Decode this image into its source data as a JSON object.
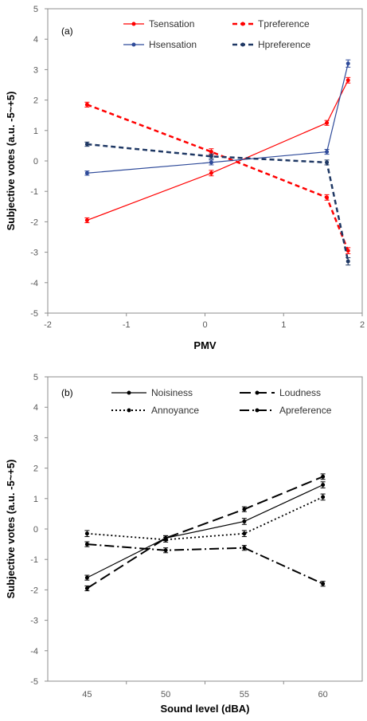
{
  "chart_data": [
    {
      "type": "line",
      "panel_label": "(a)",
      "xlabel": "PMV",
      "ylabel": "Subjective votes (a.u. -5~+5)",
      "xlim": [
        -2,
        2
      ],
      "ylim": [
        -5,
        5
      ],
      "xticks": [
        "-2",
        "-1",
        "0",
        "1",
        "2"
      ],
      "yticks": [
        "5",
        "4",
        "3",
        "2",
        "1",
        "0",
        "-1",
        "-2",
        "-3",
        "-4",
        "-5"
      ],
      "legend_placement": "top",
      "series": [
        {
          "name": "Tsensation",
          "color": "#ff0000",
          "dash": "solid",
          "x": [
            -1.5,
            0.08,
            1.55,
            1.82
          ],
          "y": [
            -1.95,
            -0.4,
            1.25,
            2.65
          ],
          "err": [
            0.08,
            0.09,
            0.08,
            0.09
          ]
        },
        {
          "name": "Tpreference",
          "color": "#ff0000",
          "dash": "dashed",
          "x": [
            -1.5,
            0.08,
            1.55,
            1.82
          ],
          "y": [
            1.85,
            0.3,
            -1.2,
            -2.95
          ],
          "err": [
            0.08,
            0.1,
            0.09,
            0.1
          ]
        },
        {
          "name": "Hsensation",
          "color": "#2f4b9a",
          "dash": "solid",
          "x": [
            -1.5,
            0.08,
            1.55,
            1.82
          ],
          "y": [
            -0.4,
            -0.05,
            0.3,
            3.2
          ],
          "err": [
            0.07,
            0.08,
            0.08,
            0.12
          ]
        },
        {
          "name": "Hpreference",
          "color": "#1f3864",
          "dash": "dashed",
          "x": [
            -1.5,
            0.08,
            1.55,
            1.82
          ],
          "y": [
            0.55,
            0.15,
            -0.05,
            -3.3
          ],
          "err": [
            0.07,
            0.08,
            0.08,
            0.12
          ]
        }
      ]
    },
    {
      "type": "line",
      "panel_label": "(b)",
      "xlabel": "Sound level (dBA)",
      "ylabel": "Subjective votes (a.u. -5~+5)",
      "categories": [
        "45",
        "50",
        "55",
        "60"
      ],
      "ylim": [
        -5,
        5
      ],
      "yticks": [
        "5",
        "4",
        "3",
        "2",
        "1",
        "0",
        "-1",
        "-2",
        "-3",
        "-4",
        "-5"
      ],
      "legend_placement": "top",
      "series": [
        {
          "name": "Noisiness",
          "color": "#000000",
          "dash": "solid",
          "values": [
            -1.6,
            -0.3,
            0.25,
            1.45
          ],
          "err": [
            0.08,
            0.08,
            0.1,
            0.1
          ]
        },
        {
          "name": "Loudness",
          "color": "#000000",
          "dash": "longdash",
          "values": [
            -1.95,
            -0.3,
            0.65,
            1.72
          ],
          "err": [
            0.08,
            0.08,
            0.08,
            0.09
          ]
        },
        {
          "name": "Annoyance",
          "color": "#000000",
          "dash": "dotted",
          "values": [
            -0.15,
            -0.35,
            -0.15,
            1.05
          ],
          "err": [
            0.1,
            0.08,
            0.1,
            0.1
          ]
        },
        {
          "name": "Apreference",
          "color": "#000000",
          "dash": "dashdot",
          "values": [
            -0.5,
            -0.7,
            -0.62,
            -1.8
          ],
          "err": [
            0.08,
            0.08,
            0.08,
            0.08
          ]
        }
      ]
    }
  ]
}
